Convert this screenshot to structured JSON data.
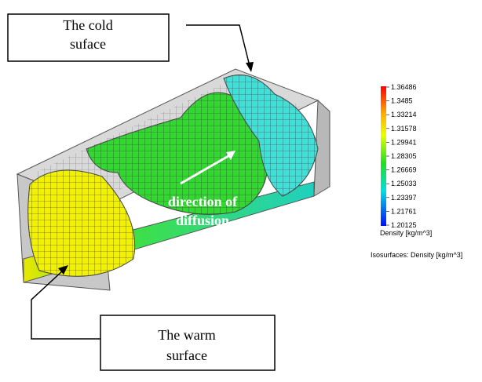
{
  "callouts": {
    "cold": [
      "The cold",
      "suface"
    ],
    "warm": [
      "The warm",
      "surface"
    ]
  },
  "annotation": [
    "direction of",
    "diffusion"
  ],
  "legend": {
    "ticks": [
      "1.36486",
      "1.3485",
      "1.33214",
      "1.31578",
      "1.29941",
      "1.28305",
      "1.26669",
      "1.25033",
      "1.23397",
      "1.21761",
      "1.20125"
    ],
    "title": "Density [kg/m^3]",
    "subtitle": "Isosurfaces: Density [kg/m^3]"
  }
}
